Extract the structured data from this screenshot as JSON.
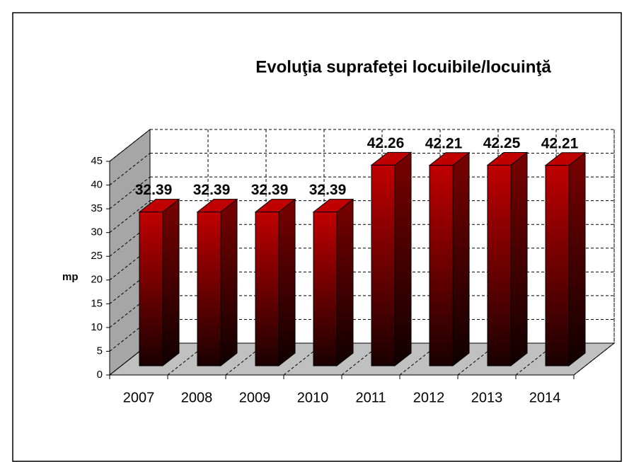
{
  "chart_data": {
    "type": "bar",
    "title": "Evoluţia suprafeţei locuibile/locuinţă",
    "y_label": "mp",
    "categories": [
      "2007",
      "2008",
      "2009",
      "2010",
      "2011",
      "2012",
      "2013",
      "2014"
    ],
    "values": [
      32.39,
      32.39,
      32.39,
      32.39,
      42.26,
      42.21,
      42.25,
      42.21
    ],
    "color": "#c00000",
    "ylim": [
      0,
      45
    ],
    "yticks": [
      0,
      5,
      10,
      15,
      20,
      25,
      30,
      35,
      40,
      45
    ],
    "grid": true
  }
}
